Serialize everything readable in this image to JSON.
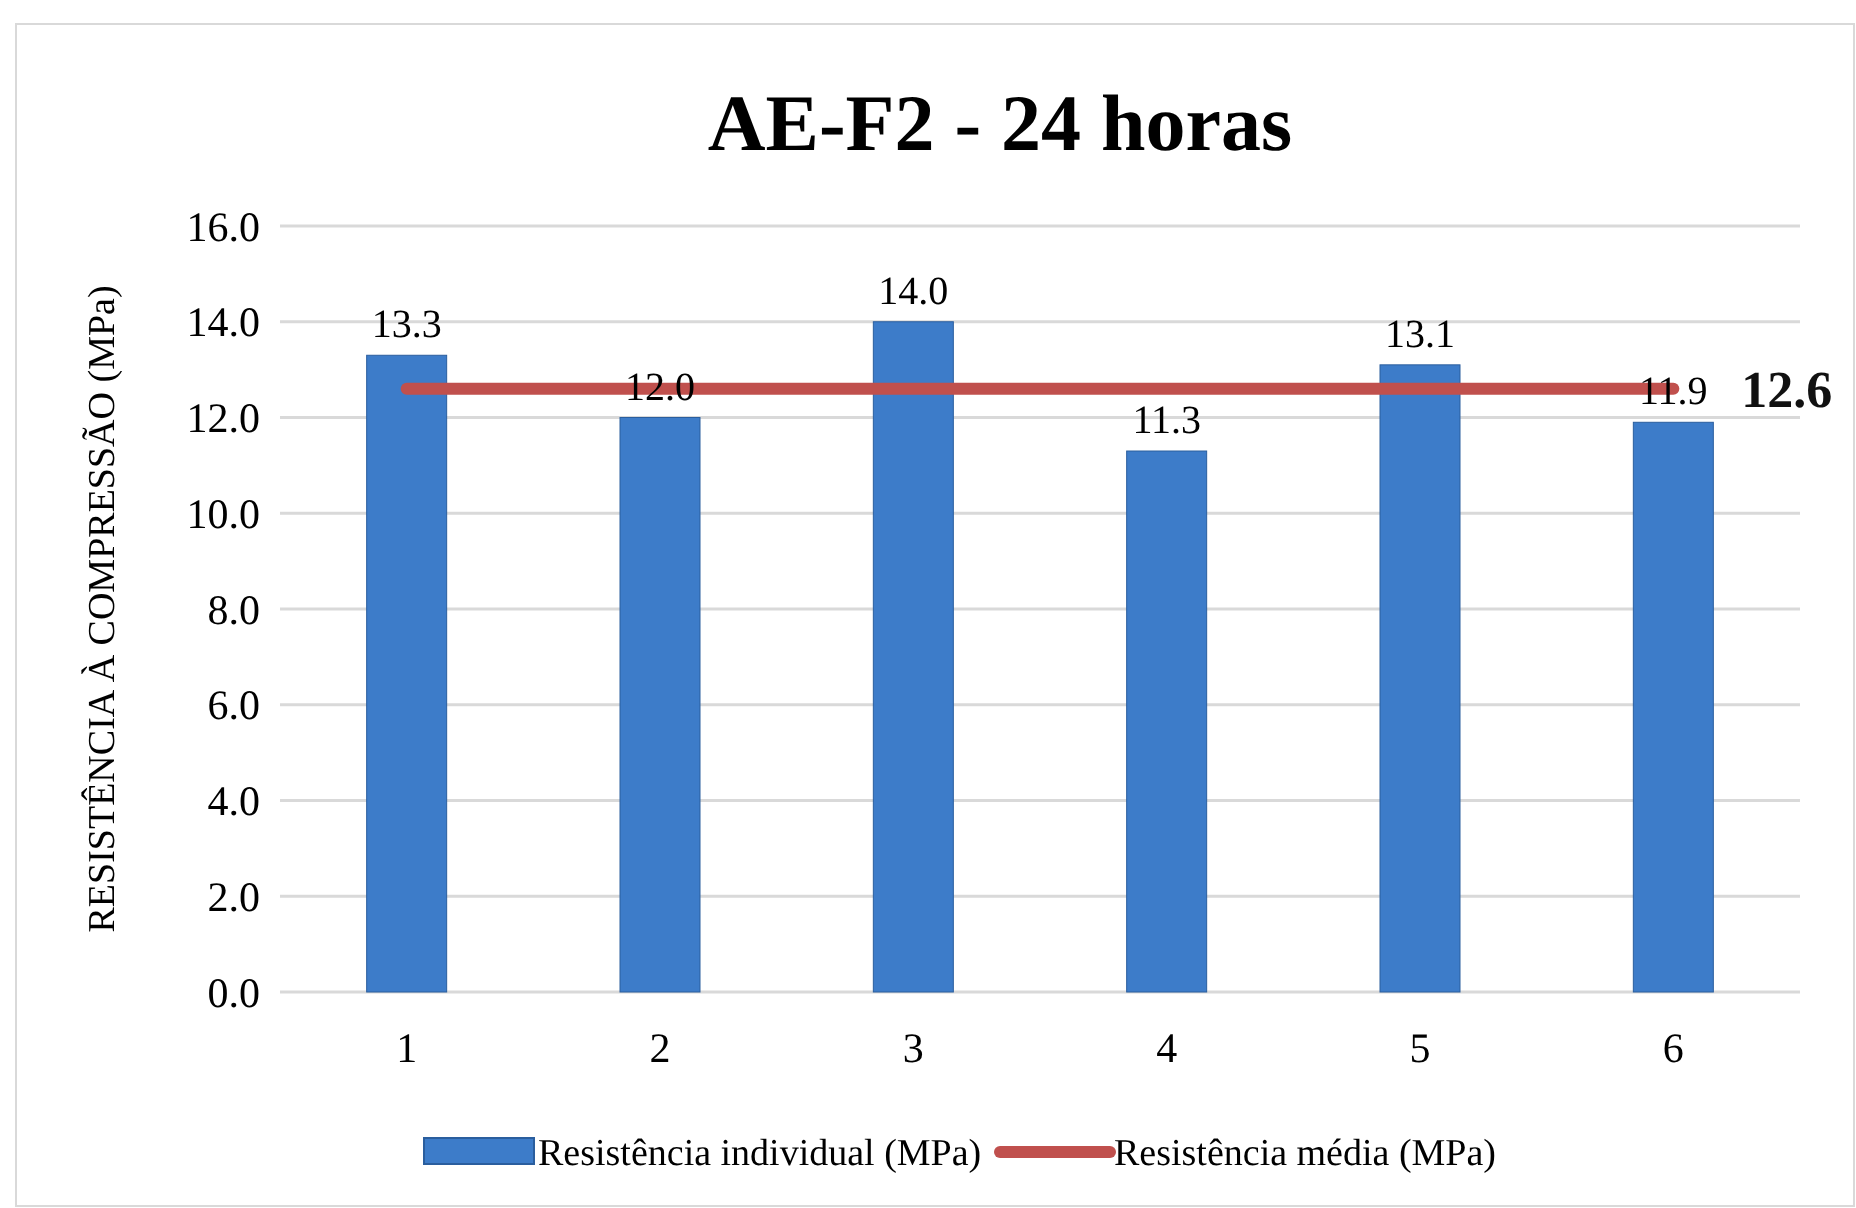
{
  "chart_data": {
    "type": "bar",
    "title": "AE-F2 - 24 horas",
    "ylabel": "RESISTÊNCIA À COMPRESSÃO (MPa)",
    "categories": [
      "1",
      "2",
      "3",
      "4",
      "5",
      "6"
    ],
    "series": [
      {
        "name": "Resistência individual (MPa)",
        "color": "#3d7cc9",
        "values": [
          13.3,
          12.0,
          14.0,
          11.3,
          13.1,
          11.9
        ],
        "value_labels": [
          "13.3",
          "12.0",
          "14.0",
          "11.3",
          "13.1",
          "11.9"
        ]
      },
      {
        "name": "Resistência média (MPa)",
        "type": "line",
        "color": "#c0504d",
        "values": [
          12.6,
          12.6,
          12.6,
          12.6,
          12.6,
          12.6
        ],
        "value_labels": [
          null,
          null,
          null,
          null,
          null,
          "12.6"
        ]
      }
    ],
    "ylim": [
      0,
      16
    ],
    "yticks": [
      {
        "value": 0,
        "label": "0.0"
      },
      {
        "value": 2,
        "label": "2.0"
      },
      {
        "value": 4,
        "label": "4.0"
      },
      {
        "value": 6,
        "label": "6.0"
      },
      {
        "value": 8,
        "label": "8.0"
      },
      {
        "value": 10,
        "label": "10.0"
      },
      {
        "value": 12,
        "label": "12.0"
      },
      {
        "value": 14,
        "label": "14.0"
      },
      {
        "value": 16,
        "label": "16.0"
      }
    ],
    "grid": "y",
    "legend": "bottom"
  }
}
